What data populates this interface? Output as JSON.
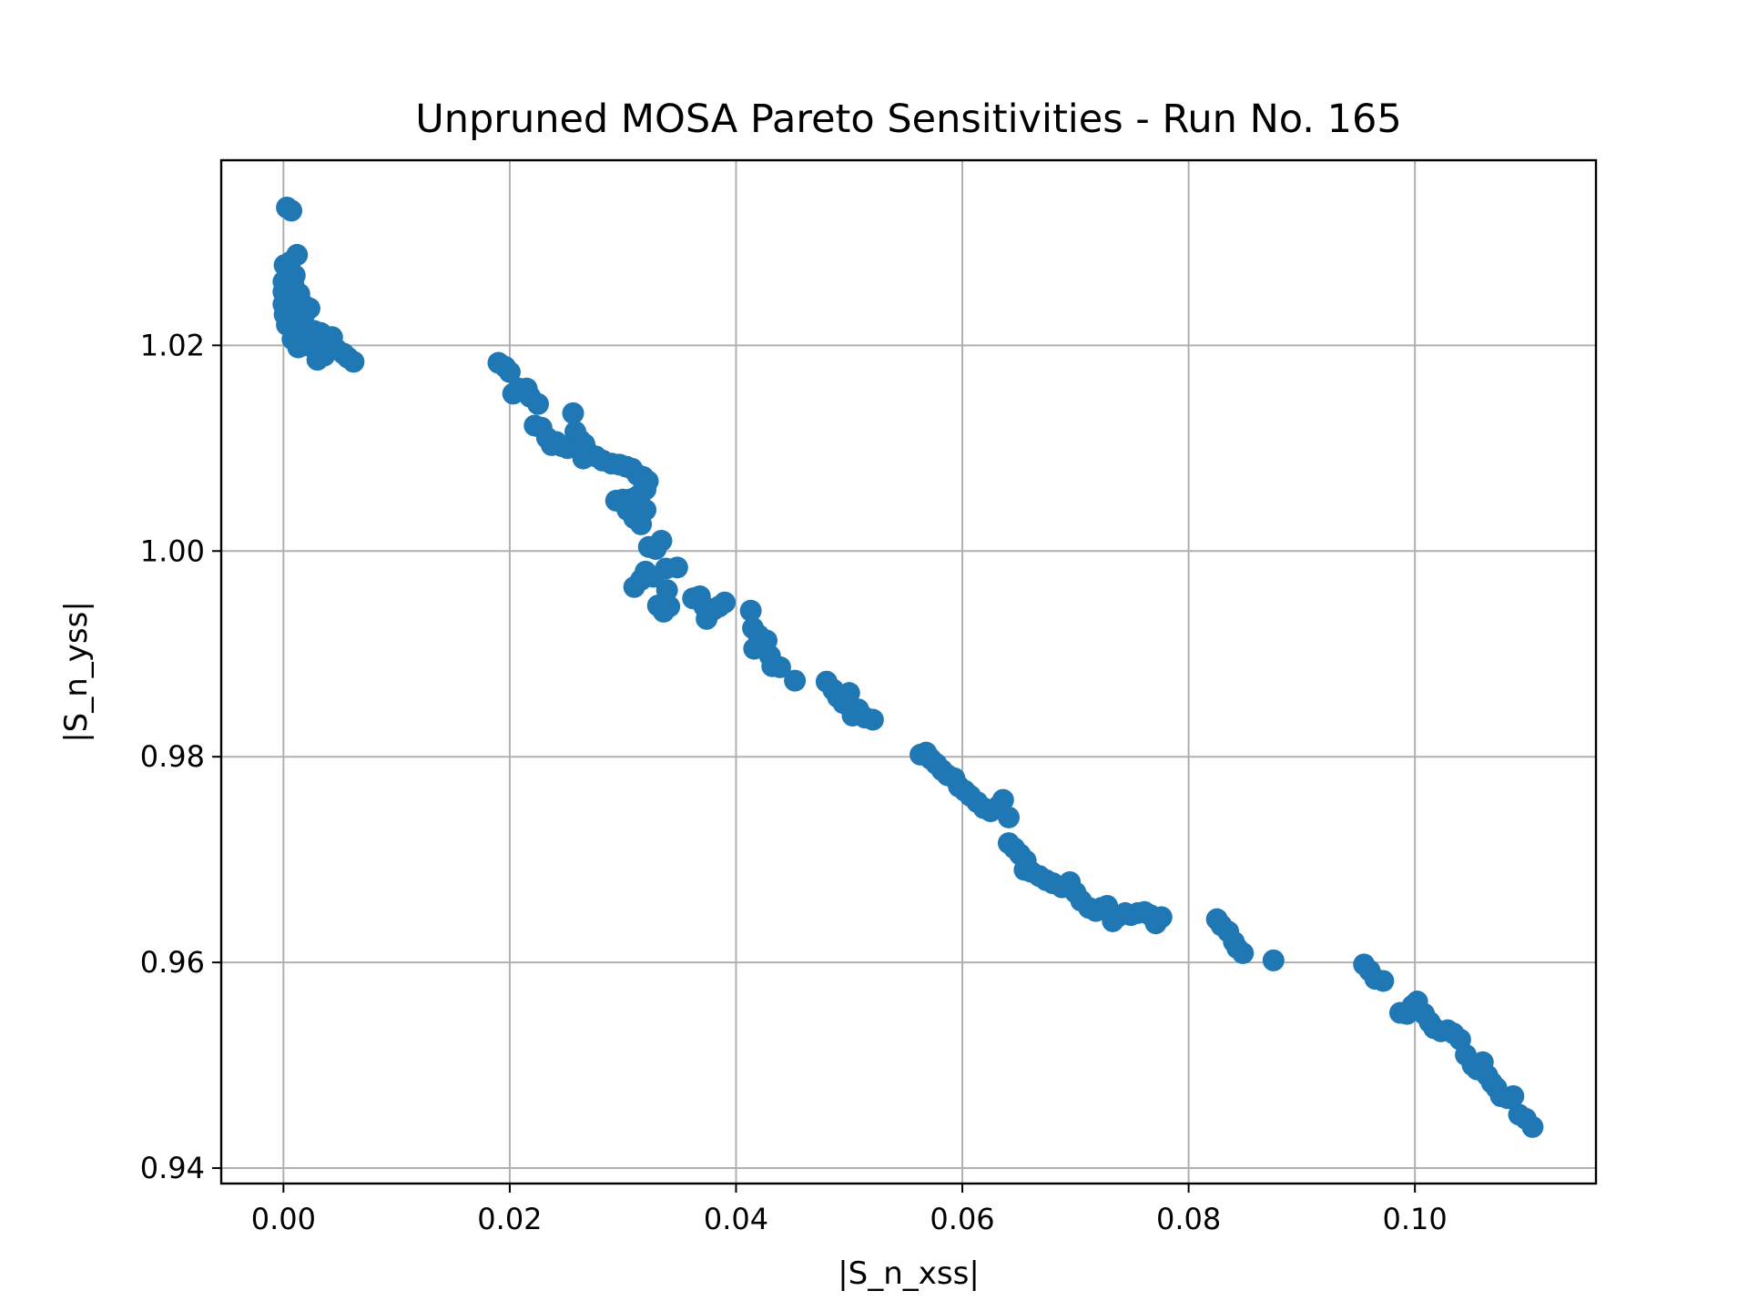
{
  "chart_data": {
    "type": "scatter",
    "title": "Unpruned MOSA Pareto Sensitivities - Run No. 165",
    "xlabel": "|S_n_xss|",
    "ylabel": "|S_n_yss|",
    "xlim": [
      -0.0055,
      0.116
    ],
    "ylim": [
      0.9385,
      1.038
    ],
    "xticks": [
      0.0,
      0.02,
      0.04,
      0.06,
      0.08,
      0.1
    ],
    "xtick_labels": [
      "0.00",
      "0.02",
      "0.04",
      "0.06",
      "0.08",
      "0.10"
    ],
    "yticks": [
      0.94,
      0.96,
      0.98,
      1.0,
      1.02
    ],
    "ytick_labels": [
      "0.94",
      "0.96",
      "0.98",
      "1.00",
      "1.02"
    ],
    "grid": true,
    "marker_color": "#1f77b4",
    "series": [
      {
        "points": [
          [
            0.0003,
            1.0334
          ],
          [
            0.0007,
            1.0331
          ],
          [
            0.0001,
            1.0278
          ],
          [
            0.0006,
            1.0281
          ],
          [
            0.0012,
            1.0288
          ],
          [
            0.0,
            1.0262
          ],
          [
            0.0005,
            1.0265
          ],
          [
            0.001,
            1.0268
          ],
          [
            0.0,
            1.0252
          ],
          [
            0.0004,
            1.0255
          ],
          [
            0.0009,
            1.0258
          ],
          [
            0.0014,
            1.025
          ],
          [
            0.0,
            1.024
          ],
          [
            0.0005,
            1.0243
          ],
          [
            0.0011,
            1.0238
          ],
          [
            0.0017,
            1.024
          ],
          [
            0.0023,
            1.0236
          ],
          [
            0.0001,
            1.023
          ],
          [
            0.0006,
            1.0228
          ],
          [
            0.0012,
            1.0226
          ],
          [
            0.0018,
            1.0229
          ],
          [
            0.0003,
            1.022
          ],
          [
            0.0009,
            1.0218
          ],
          [
            0.0015,
            1.0215
          ],
          [
            0.0021,
            1.0212
          ],
          [
            0.0027,
            1.0214
          ],
          [
            0.0033,
            1.0212
          ],
          [
            0.0008,
            1.0206
          ],
          [
            0.0014,
            1.0203
          ],
          [
            0.002,
            1.02
          ],
          [
            0.0026,
            1.0204
          ],
          [
            0.0032,
            1.0202
          ],
          [
            0.0038,
            1.0205
          ],
          [
            0.0043,
            1.0208
          ],
          [
            0.0013,
            1.0198
          ],
          [
            0.003,
            1.0186
          ],
          [
            0.0036,
            1.019
          ],
          [
            0.0041,
            1.0196
          ],
          [
            0.0047,
            1.0196
          ],
          [
            0.0053,
            1.0192
          ],
          [
            0.0057,
            1.0188
          ],
          [
            0.0062,
            1.0184
          ],
          [
            0.019,
            1.0183
          ],
          [
            0.0196,
            1.0179
          ],
          [
            0.02,
            1.0174
          ],
          [
            0.0203,
            1.0153
          ],
          [
            0.0208,
            1.0158
          ],
          [
            0.0215,
            1.0158
          ],
          [
            0.0218,
            1.015
          ],
          [
            0.0225,
            1.0143
          ],
          [
            0.0222,
            1.0122
          ],
          [
            0.0228,
            1.012
          ],
          [
            0.0233,
            1.011
          ],
          [
            0.0237,
            1.0103
          ],
          [
            0.0241,
            1.0106
          ],
          [
            0.0246,
            1.0102
          ],
          [
            0.0251,
            1.01
          ],
          [
            0.0256,
            1.0134
          ],
          [
            0.0258,
            1.0116
          ],
          [
            0.0262,
            1.0108
          ],
          [
            0.0266,
            1.0104
          ],
          [
            0.0265,
            1.009
          ],
          [
            0.027,
            1.0095
          ],
          [
            0.0276,
            1.0092
          ],
          [
            0.0282,
            1.0088
          ],
          [
            0.029,
            1.0085
          ],
          [
            0.0297,
            1.0084
          ],
          [
            0.0303,
            1.0082
          ],
          [
            0.0308,
            1.008
          ],
          [
            0.0313,
            1.0074
          ],
          [
            0.0318,
            1.0072
          ],
          [
            0.0322,
            1.0068
          ],
          [
            0.032,
            1.006
          ],
          [
            0.0316,
            1.0056
          ],
          [
            0.0311,
            1.0052
          ],
          [
            0.0306,
            1.005
          ],
          [
            0.03,
            1.005
          ],
          [
            0.0294,
            1.0049
          ],
          [
            0.0304,
            1.004
          ],
          [
            0.031,
            1.0032
          ],
          [
            0.0316,
            1.0026
          ],
          [
            0.032,
            1.004
          ],
          [
            0.0323,
            1.0004
          ],
          [
            0.0329,
            1.0002
          ],
          [
            0.0334,
            1.001
          ],
          [
            0.032,
            0.998
          ],
          [
            0.0316,
            0.9972
          ],
          [
            0.0327,
            0.9975
          ],
          [
            0.0338,
            0.9983
          ],
          [
            0.0348,
            0.9984
          ],
          [
            0.0339,
            0.9962
          ],
          [
            0.0331,
            0.9947
          ],
          [
            0.0336,
            0.9941
          ],
          [
            0.0341,
            0.9946
          ],
          [
            0.031,
            0.9965
          ],
          [
            0.0362,
            0.9954
          ],
          [
            0.0368,
            0.9956
          ],
          [
            0.0372,
            0.9946
          ],
          [
            0.0374,
            0.9934
          ],
          [
            0.038,
            0.9943
          ],
          [
            0.0385,
            0.9946
          ],
          [
            0.039,
            0.995
          ],
          [
            0.0413,
            0.9942
          ],
          [
            0.0415,
            0.9925
          ],
          [
            0.042,
            0.9918
          ],
          [
            0.0427,
            0.9913
          ],
          [
            0.0416,
            0.9905
          ],
          [
            0.043,
            0.9898
          ],
          [
            0.0432,
            0.9888
          ],
          [
            0.0439,
            0.9887
          ],
          [
            0.0452,
            0.9874
          ],
          [
            0.048,
            0.9873
          ],
          [
            0.0486,
            0.9865
          ],
          [
            0.049,
            0.9858
          ],
          [
            0.0495,
            0.9852
          ],
          [
            0.05,
            0.9862
          ],
          [
            0.0503,
            0.984
          ],
          [
            0.0508,
            0.9846
          ],
          [
            0.0514,
            0.9838
          ],
          [
            0.0521,
            0.9836
          ],
          [
            0.0563,
            0.9802
          ],
          [
            0.0568,
            0.9804
          ],
          [
            0.0572,
            0.9798
          ],
          [
            0.0577,
            0.9793
          ],
          [
            0.0582,
            0.9787
          ],
          [
            0.0587,
            0.9782
          ],
          [
            0.0593,
            0.9779
          ],
          [
            0.0597,
            0.9771
          ],
          [
            0.0602,
            0.9767
          ],
          [
            0.0607,
            0.9762
          ],
          [
            0.0613,
            0.9756
          ],
          [
            0.0619,
            0.975
          ],
          [
            0.0625,
            0.9747
          ],
          [
            0.0632,
            0.9752
          ],
          [
            0.0636,
            0.9758
          ],
          [
            0.0641,
            0.9741
          ],
          [
            0.0641,
            0.9716
          ],
          [
            0.0646,
            0.9711
          ],
          [
            0.0651,
            0.9705
          ],
          [
            0.0656,
            0.9699
          ],
          [
            0.0655,
            0.969
          ],
          [
            0.0661,
            0.9688
          ],
          [
            0.0668,
            0.9684
          ],
          [
            0.0674,
            0.968
          ],
          [
            0.068,
            0.9677
          ],
          [
            0.0688,
            0.9673
          ],
          [
            0.0695,
            0.9678
          ],
          [
            0.07,
            0.9668
          ],
          [
            0.0705,
            0.966
          ],
          [
            0.0712,
            0.9653
          ],
          [
            0.0718,
            0.965
          ],
          [
            0.0723,
            0.9653
          ],
          [
            0.0728,
            0.9655
          ],
          [
            0.0733,
            0.964
          ],
          [
            0.0738,
            0.9645
          ],
          [
            0.0744,
            0.9648
          ],
          [
            0.0749,
            0.9646
          ],
          [
            0.0755,
            0.9648
          ],
          [
            0.0761,
            0.9649
          ],
          [
            0.0766,
            0.9646
          ],
          [
            0.0771,
            0.9638
          ],
          [
            0.0776,
            0.9644
          ],
          [
            0.0825,
            0.9642
          ],
          [
            0.0829,
            0.9636
          ],
          [
            0.0835,
            0.963
          ],
          [
            0.084,
            0.962
          ],
          [
            0.0843,
            0.9614
          ],
          [
            0.0848,
            0.9609
          ],
          [
            0.0875,
            0.9602
          ],
          [
            0.0955,
            0.9598
          ],
          [
            0.096,
            0.9592
          ],
          [
            0.0965,
            0.9584
          ],
          [
            0.0972,
            0.9582
          ],
          [
            0.0987,
            0.9551
          ],
          [
            0.0993,
            0.955
          ],
          [
            0.0998,
            0.9558
          ],
          [
            0.1002,
            0.9562
          ],
          [
            0.1008,
            0.955
          ],
          [
            0.1013,
            0.9542
          ],
          [
            0.1017,
            0.9536
          ],
          [
            0.1023,
            0.9533
          ],
          [
            0.1029,
            0.9534
          ],
          [
            0.1034,
            0.9531
          ],
          [
            0.104,
            0.9525
          ],
          [
            0.1045,
            0.951
          ],
          [
            0.1051,
            0.95
          ],
          [
            0.1055,
            0.9496
          ],
          [
            0.106,
            0.9503
          ],
          [
            0.1064,
            0.949
          ],
          [
            0.1068,
            0.9483
          ],
          [
            0.1072,
            0.9478
          ],
          [
            0.1076,
            0.947
          ],
          [
            0.1082,
            0.9468
          ],
          [
            0.1087,
            0.947
          ],
          [
            0.1092,
            0.9452
          ],
          [
            0.1098,
            0.9448
          ],
          [
            0.1104,
            0.944
          ]
        ]
      }
    ]
  }
}
